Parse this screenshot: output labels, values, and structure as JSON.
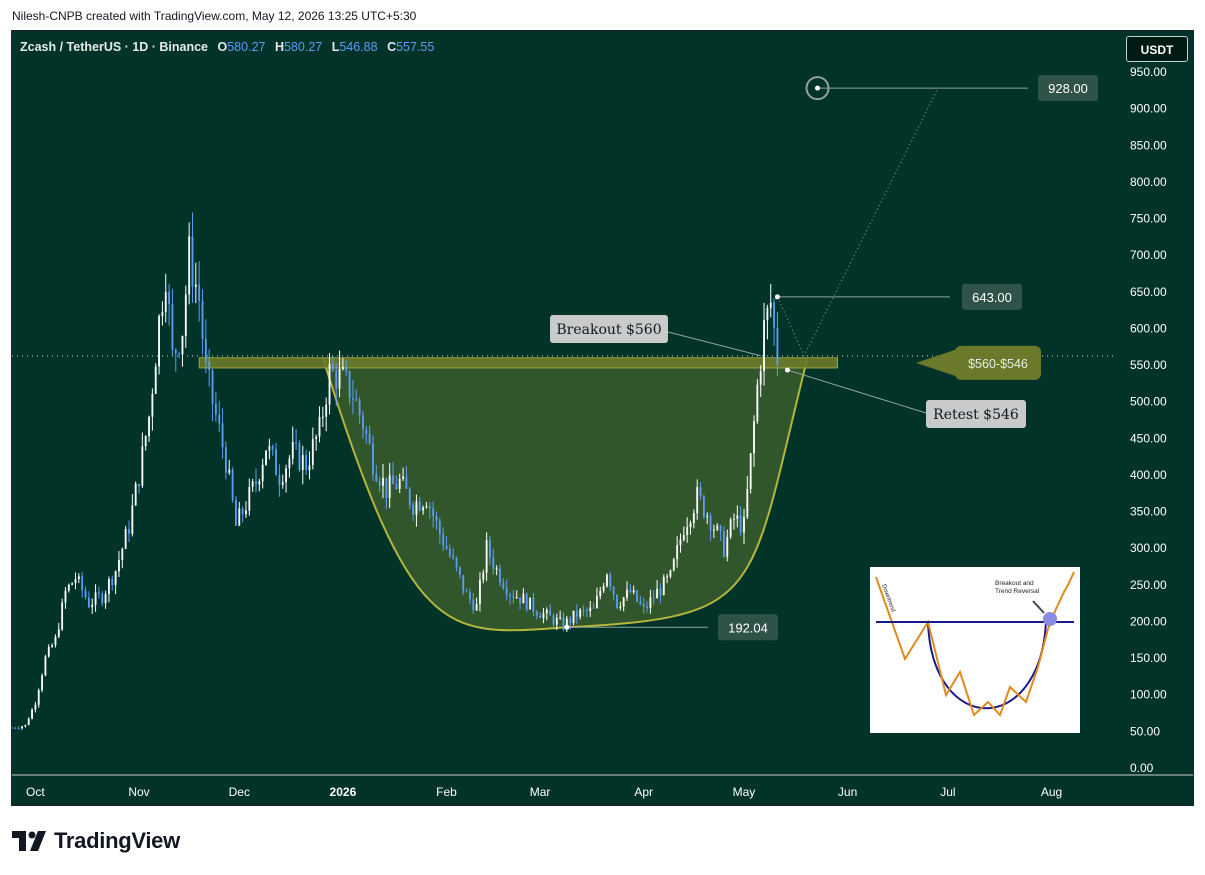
{
  "credit": "Nilesh-CNPB created with TradingView.com, May 12, 2026 13:25 UTC+5:30",
  "symbol": {
    "name": "Zcash / TetherUS · 1D · Binance",
    "o_label": "O",
    "o": "580.27",
    "h_label": "H",
    "h": "580.27",
    "l_label": "L",
    "l": "546.88",
    "c_label": "C",
    "c": "557.55"
  },
  "currency": "USDT",
  "brand": "TradingView",
  "colors": {
    "background": "#013328",
    "candle_up": "#ffffff",
    "candle_down": "#5b9cf6",
    "cup": "#b5b53b",
    "zone_fill": "#6b7a2a"
  },
  "chart_data": {
    "type": "candlestick",
    "yaxis": {
      "ticks": [
        "950.00",
        "900.00",
        "850.00",
        "800.00",
        "750.00",
        "700.00",
        "650.00",
        "600.00",
        "550.00",
        "500.00",
        "450.00",
        "400.00",
        "350.00",
        "300.00",
        "250.00",
        "200.00",
        "150.00",
        "100.00",
        "50.00",
        "0.00"
      ],
      "range": [
        0,
        960
      ]
    },
    "xaxis": {
      "ticks": [
        "Oct",
        "Nov",
        "Dec",
        "2026",
        "Feb",
        "Mar",
        "Apr",
        "May",
        "Jun",
        "Jul",
        "Aug"
      ],
      "range": [
        "2025-09-24",
        "2026-08-20"
      ]
    },
    "last_price": "562.56",
    "price_path": [
      [
        "2025-09-24",
        55
      ],
      [
        "2025-09-28",
        58
      ],
      [
        "2025-10-01",
        90
      ],
      [
        "2025-10-04",
        150
      ],
      [
        "2025-10-07",
        175
      ],
      [
        "2025-10-10",
        240
      ],
      [
        "2025-10-13",
        260
      ],
      [
        "2025-10-17",
        225
      ],
      [
        "2025-10-21",
        235
      ],
      [
        "2025-10-25",
        270
      ],
      [
        "2025-10-29",
        330
      ],
      [
        "2025-11-01",
        400
      ],
      [
        "2025-11-04",
        480
      ],
      [
        "2025-11-07",
        610
      ],
      [
        "2025-11-09",
        680
      ],
      [
        "2025-11-11",
        560
      ],
      [
        "2025-11-14",
        600
      ],
      [
        "2025-11-16",
        700
      ],
      [
        "2025-11-19",
        640
      ],
      [
        "2025-11-21",
        540
      ],
      [
        "2025-11-24",
        480
      ],
      [
        "2025-11-27",
        420
      ],
      [
        "2025-11-30",
        330
      ],
      [
        "2025-12-03",
        360
      ],
      [
        "2025-12-06",
        390
      ],
      [
        "2025-12-09",
        440
      ],
      [
        "2025-12-13",
        400
      ],
      [
        "2025-12-17",
        430
      ],
      [
        "2025-12-21",
        415
      ],
      [
        "2025-12-25",
        460
      ],
      [
        "2025-12-28",
        540
      ],
      [
        "2026-01-01",
        530
      ],
      [
        "2026-01-04",
        510
      ],
      [
        "2026-01-07",
        470
      ],
      [
        "2026-01-10",
        420
      ],
      [
        "2026-01-14",
        380
      ],
      [
        "2026-01-18",
        390
      ],
      [
        "2026-01-22",
        360
      ],
      [
        "2026-01-26",
        370
      ],
      [
        "2026-01-30",
        320
      ],
      [
        "2026-02-03",
        280
      ],
      [
        "2026-02-07",
        235
      ],
      [
        "2026-02-10",
        220
      ],
      [
        "2026-02-13",
        300
      ],
      [
        "2026-02-16",
        270
      ],
      [
        "2026-02-20",
        240
      ],
      [
        "2026-02-24",
        230
      ],
      [
        "2026-02-28",
        215
      ],
      [
        "2026-03-04",
        205
      ],
      [
        "2026-03-08",
        195
      ],
      [
        "2026-03-12",
        210
      ],
      [
        "2026-03-17",
        215
      ],
      [
        "2026-03-21",
        270
      ],
      [
        "2026-03-24",
        225
      ],
      [
        "2026-03-28",
        240
      ],
      [
        "2026-04-01",
        215
      ],
      [
        "2026-04-05",
        240
      ],
      [
        "2026-04-09",
        260
      ],
      [
        "2026-04-13",
        330
      ],
      [
        "2026-04-17",
        370
      ],
      [
        "2026-04-21",
        340
      ],
      [
        "2026-04-25",
        300
      ],
      [
        "2026-04-28",
        340
      ],
      [
        "2026-05-01",
        330
      ],
      [
        "2026-05-03",
        420
      ],
      [
        "2026-05-05",
        520
      ],
      [
        "2026-05-07",
        600
      ],
      [
        "2026-05-09",
        635
      ],
      [
        "2026-05-11",
        560
      ]
    ],
    "annotations": {
      "breakout": "Breakout $560",
      "retest": "Retest $546",
      "zone": "$560-$546",
      "peak": "643.00",
      "bottom": "192.04",
      "target": "928.00"
    },
    "levels": {
      "zone_top": 560,
      "zone_bottom": 546,
      "peak": 643,
      "bottom": 192.04,
      "target": 928,
      "last": 562.56
    }
  },
  "inset": {
    "label_downtrend": "Downtrend",
    "label_breakout_1": "Breakout and",
    "label_breakout_2": "Trend Reversal"
  }
}
